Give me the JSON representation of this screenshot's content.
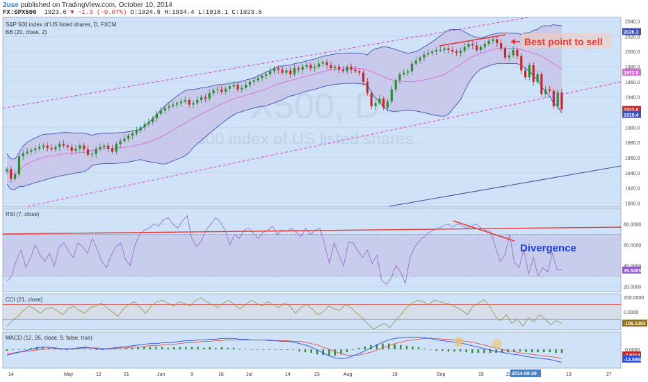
{
  "header": {
    "brand": "2use",
    "published": " published on TradingView.com, October 10, 2014",
    "symbol": "FX:SPX500",
    "last": "1923.6",
    "change": "▼ −1.3 (−0.07%)",
    "open": "O:1924.9",
    "high": "H:1934.4",
    "low": "L:1918.1",
    "close": "C:1923.6"
  },
  "colors": {
    "panel_bg": "#cfe2f7",
    "band_fill": "#c8c4ea",
    "band_line": "#3f51b5",
    "basis_line": "#d86ad8",
    "up_candle": "#2e8b32",
    "down_candle": "#c62828",
    "channel": "#e040c0",
    "annotation_red": "#e53935",
    "divergence_blue": "#1e3fd6",
    "rsi_line": "#9b6fcf",
    "cci_line": "#9a9a50",
    "macd_line": "#2b4fd8",
    "signal_line": "#e65050"
  },
  "chart_data": [
    {
      "type": "candlestick",
      "title": "S&P 500 index of US listed shares, D, FXCM",
      "indicator": "BB (20, close, 2)",
      "watermark_symbol": "SPX500, D",
      "watermark_name": "S&P 500 index of US listed shares",
      "ylim": [
        1795,
        2045
      ],
      "y_ticks": [
        "2040.0",
        "2020.0",
        "2000.0",
        "1980.0",
        "1960.0",
        "1940.0",
        "1920.0",
        "1900.0",
        "1880.0",
        "1860.0",
        "1840.0",
        "1820.0",
        "1800.0"
      ],
      "x_ticks": [
        "14",
        "May",
        "12",
        "21",
        "Jun",
        "9",
        "16",
        "Jul",
        "14",
        "23",
        "Aug",
        "18",
        "Sep",
        "15",
        "22",
        "2014-09-29",
        "13",
        "27"
      ],
      "price_labels": {
        "upper_band": "2026.3",
        "basis": "1972.8",
        "last": "1923.6",
        "lower_band": "1919.4"
      },
      "annotation_sell": "Best point to sell",
      "closes": [
        1845,
        1832,
        1838,
        1862,
        1866,
        1868,
        1870,
        1872,
        1874,
        1876,
        1873,
        1871,
        1874,
        1878,
        1876,
        1874,
        1869,
        1872,
        1876,
        1871,
        1864,
        1865,
        1871,
        1874,
        1876,
        1872,
        1868,
        1878,
        1882,
        1885,
        1889,
        1892,
        1896,
        1900,
        1904,
        1907,
        1912,
        1918,
        1922,
        1926,
        1928,
        1930,
        1932,
        1934,
        1936,
        1930,
        1932,
        1936,
        1940,
        1938,
        1945,
        1949,
        1950,
        1947,
        1951,
        1954,
        1956,
        1950,
        1952,
        1956,
        1960,
        1962,
        1965,
        1968,
        1970,
        1974,
        1978,
        1976,
        1972,
        1975,
        1970,
        1978,
        1976,
        1980,
        1982,
        1978,
        1980,
        1984,
        1986,
        1982,
        1978,
        1980,
        1976,
        1974,
        1980,
        1976,
        1974,
        1972,
        1960,
        1945,
        1928,
        1932,
        1938,
        1926,
        1934,
        1950,
        1962,
        1970,
        1972,
        1974,
        1984,
        1988,
        1992,
        1996,
        1998,
        2000,
        2002,
        2002,
        2004,
        2002,
        2000,
        1998,
        2001,
        2006,
        2010,
        2008,
        2002,
        2006,
        2010,
        2014,
        2016,
        2011,
        2004,
        1992,
        1995,
        2002,
        1994,
        1975,
        1966,
        1982,
        1960,
        1970,
        1944,
        1950,
        1948,
        1928,
        1946,
        1924
      ]
    },
    {
      "type": "line",
      "title": "RSI (7, close)",
      "ylim": [
        15,
        95
      ],
      "y_ticks": [
        "80.0000",
        "60.0000",
        "40.0000",
        "20.0000"
      ],
      "levels": [
        70,
        30
      ],
      "last_label": "35.8265",
      "annotation": "Divergence",
      "values": [
        25,
        30,
        45,
        55,
        38,
        48,
        60,
        50,
        44,
        52,
        40,
        58,
        62,
        54,
        48,
        62,
        58,
        52,
        66,
        56,
        44,
        38,
        50,
        58,
        62,
        46,
        40,
        60,
        70,
        74,
        76,
        80,
        78,
        84,
        86,
        80,
        76,
        83,
        88,
        66,
        58,
        64,
        74,
        80,
        86,
        82,
        74,
        60,
        70,
        66,
        74,
        76,
        71,
        66,
        72,
        74,
        78,
        70,
        74,
        73,
        76,
        72,
        68,
        76,
        70,
        74,
        76,
        60,
        42,
        62,
        50,
        40,
        62,
        62,
        54,
        48,
        55,
        42,
        50,
        26,
        22,
        28,
        40,
        34,
        23,
        48,
        58,
        64,
        68,
        72,
        74,
        76,
        78,
        80,
        77,
        80,
        78,
        76,
        78,
        80,
        76,
        74,
        73,
        58,
        44,
        50,
        70,
        43,
        38,
        56,
        32,
        48,
        30,
        38,
        34,
        52,
        36,
        36
      ]
    },
    {
      "type": "line",
      "title": "CCI (21, close)",
      "ylim": [
        -250,
        250
      ],
      "y_ticks": [
        "200.0000",
        "0.0000"
      ],
      "levels": [
        100,
        -100
      ],
      "last_label": "-156.1393",
      "values": [
        -200,
        -120,
        -60,
        20,
        80,
        40,
        -20,
        40,
        60,
        20,
        -40,
        40,
        80,
        20,
        -20,
        60,
        80,
        120,
        60,
        0,
        -60,
        40,
        100,
        140,
        60,
        -20,
        80,
        140,
        160,
        120,
        80,
        140,
        120,
        80,
        160,
        190,
        140,
        100,
        60,
        120,
        160,
        100,
        40,
        100,
        160,
        120,
        80,
        140,
        100,
        60,
        120,
        80,
        -20,
        60,
        100,
        40,
        -40,
        0,
        80,
        40,
        20,
        100,
        60,
        -20,
        -80,
        -160,
        -240,
        -200,
        -160,
        -220,
        -120,
        -40,
        60,
        120,
        160,
        140,
        100,
        160,
        140,
        120,
        100,
        60,
        20,
        -40,
        80,
        120,
        170,
        80,
        -60,
        -120,
        -40,
        -160,
        -100,
        -200,
        -80,
        -140,
        -40,
        -100,
        -180,
        -120,
        -160
      ]
    },
    {
      "type": "line+bar",
      "title": "MACD (12, 26, close, 9, false, true)",
      "ylim": [
        -26,
        24
      ],
      "y_ticks": [
        "0.0000"
      ],
      "last_labels": {
        "macd": "-7.8314",
        "signal": "-13.5958"
      },
      "macd": [
        -8,
        -6,
        -4,
        -2,
        0,
        2,
        3,
        3,
        2,
        1,
        0,
        1,
        2,
        3,
        2,
        1,
        0,
        1,
        2,
        3,
        4,
        5,
        6,
        7,
        8,
        8,
        9,
        9,
        10,
        11,
        12,
        12,
        13,
        13,
        14,
        14,
        15,
        15,
        15,
        14,
        14,
        13,
        13,
        13,
        12,
        12,
        11,
        11,
        10,
        8,
        6,
        3,
        -1,
        -5,
        -9,
        -12,
        -13,
        -12,
        -9,
        -6,
        -2,
        2,
        6,
        10,
        13,
        15,
        16,
        17,
        17,
        17,
        16,
        15,
        13,
        12,
        11,
        10,
        9,
        7,
        5,
        3,
        1,
        -1,
        -3,
        -4,
        -6,
        -7,
        -8,
        -10,
        -11,
        -12,
        -13,
        -14,
        -16,
        -18
      ],
      "signal": [
        -6,
        -5,
        -4,
        -3,
        -2,
        -1,
        0,
        1,
        1,
        1,
        1,
        1,
        1,
        2,
        2,
        2,
        1,
        1,
        1,
        2,
        2,
        3,
        3,
        4,
        5,
        5,
        6,
        7,
        7,
        8,
        9,
        9,
        10,
        11,
        11,
        12,
        12,
        13,
        13,
        13,
        13,
        13,
        13,
        13,
        13,
        12,
        12,
        12,
        11,
        11,
        10,
        8,
        6,
        3,
        0,
        -3,
        -6,
        -8,
        -8,
        -8,
        -6,
        -4,
        -1,
        2,
        5,
        8,
        10,
        12,
        13,
        14,
        15,
        15,
        15,
        14,
        14,
        13,
        12,
        11,
        10,
        8,
        6,
        4,
        2,
        0,
        -2,
        -3,
        -5,
        -6,
        -7,
        -8,
        -9,
        -10,
        -11,
        -13
      ],
      "histogram": [
        -2,
        -1,
        0,
        1,
        2,
        3,
        3,
        2,
        1,
        0,
        -1,
        0,
        1,
        1,
        0,
        -1,
        -1,
        0,
        1,
        1,
        2,
        2,
        3,
        3,
        3,
        3,
        3,
        2,
        3,
        3,
        3,
        3,
        3,
        2,
        3,
        2,
        3,
        2,
        2,
        1,
        1,
        0,
        0,
        0,
        -1,
        0,
        -1,
        -1,
        -1,
        -3,
        -4,
        -5,
        -7,
        -8,
        -9,
        -9,
        -7,
        -4,
        -1,
        2,
        4,
        6,
        7,
        8,
        8,
        7,
        6,
        5,
        4,
        3,
        1,
        0,
        -2,
        -2,
        -3,
        -3,
        -3,
        -4,
        -5,
        -5,
        -5,
        -5,
        -5,
        -4,
        -4,
        -4,
        -3,
        -4,
        -4,
        -4,
        -4,
        -4,
        -5,
        -5
      ]
    }
  ]
}
